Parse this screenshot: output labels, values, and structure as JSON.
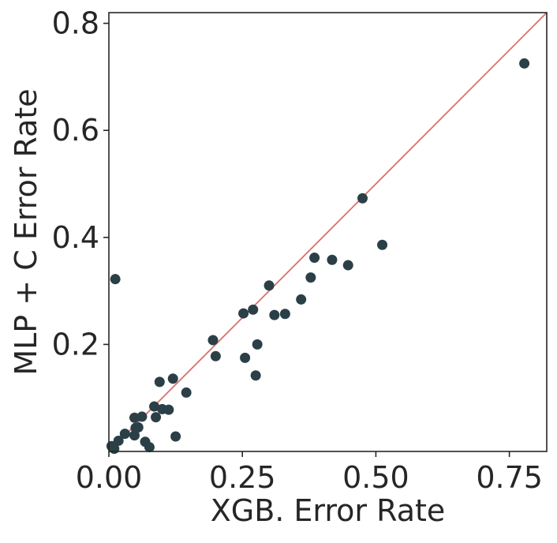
{
  "chart_data": {
    "type": "scatter",
    "title": "",
    "xlabel": "XGB. Error Rate",
    "ylabel": "MLP + C Error Rate",
    "xlim": [
      0.0,
      0.82
    ],
    "ylim": [
      0.0,
      0.82
    ],
    "xticks": [
      0.0,
      0.25,
      0.5,
      0.75
    ],
    "xtick_labels": [
      "0.00",
      "0.25",
      "0.50",
      "0.75"
    ],
    "yticks": [
      0.2,
      0.4,
      0.6,
      0.8
    ],
    "ytick_labels": [
      "0.2",
      "0.4",
      "0.6",
      "0.8"
    ],
    "grid": false,
    "legend": "none",
    "point_color": "#2b3f47",
    "reference_line": {
      "from": [
        0.0,
        0.0
      ],
      "to": [
        0.82,
        0.82
      ],
      "color": "#d9726f"
    },
    "series": [
      {
        "x": [
          0.012,
          0.005,
          0.01,
          0.018,
          0.03,
          0.048,
          0.05,
          0.055,
          0.062,
          0.048,
          0.068,
          0.076,
          0.085,
          0.088,
          0.1,
          0.112,
          0.095,
          0.12,
          0.125,
          0.145,
          0.195,
          0.2,
          0.252,
          0.255,
          0.27,
          0.275,
          0.278,
          0.3,
          0.31,
          0.33,
          0.36,
          0.378,
          0.385,
          0.418,
          0.448,
          0.475,
          0.512,
          0.778
        ],
        "y": [
          0.322,
          0.01,
          0.005,
          0.02,
          0.033,
          0.03,
          0.044,
          0.045,
          0.065,
          0.063,
          0.018,
          0.008,
          0.084,
          0.064,
          0.079,
          0.078,
          0.13,
          0.136,
          0.028,
          0.11,
          0.208,
          0.178,
          0.258,
          0.175,
          0.265,
          0.142,
          0.2,
          0.31,
          0.255,
          0.257,
          0.284,
          0.325,
          0.362,
          0.358,
          0.348,
          0.473,
          0.386,
          0.725
        ]
      }
    ]
  }
}
